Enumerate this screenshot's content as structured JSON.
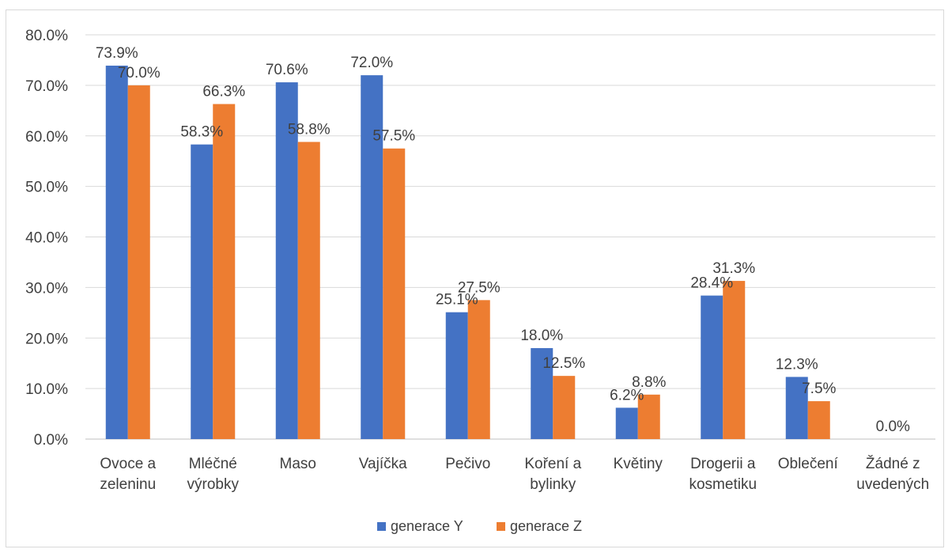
{
  "chart_data": {
    "type": "bar",
    "title": "",
    "xlabel": "",
    "ylabel": "",
    "ylim": [
      0,
      80
    ],
    "y_tick_step": 10,
    "y_tick_format": "percent_1dp",
    "grid": true,
    "legend_position": "bottom",
    "categories": [
      [
        "Ovoce a",
        "zeleninu"
      ],
      [
        "Mléčné",
        "výrobky"
      ],
      [
        "Maso"
      ],
      [
        "Vajíčka"
      ],
      [
        "Pečivo"
      ],
      [
        "Koření a",
        "bylinky"
      ],
      [
        "Květiny"
      ],
      [
        "Drogerii a",
        "kosmetiku"
      ],
      [
        "Oblečení"
      ],
      [
        "Žádné z",
        "uvedených"
      ]
    ],
    "series": [
      {
        "name": "generace Y",
        "color": "#4472c4",
        "values": [
          73.9,
          58.3,
          70.6,
          72.0,
          25.1,
          18.0,
          6.2,
          28.4,
          12.3,
          0.0
        ],
        "labels": [
          "73.9%",
          "58.3%",
          "70.6%",
          "72.0%",
          "25.1%",
          "18.0%",
          "6.2%",
          "28.4%",
          "12.3%",
          "0.0%"
        ]
      },
      {
        "name": "generace Z",
        "color": "#ed7d31",
        "values": [
          70.0,
          66.3,
          58.8,
          57.5,
          27.5,
          12.5,
          8.8,
          31.3,
          7.5,
          null
        ],
        "labels": [
          "70.0%",
          "66.3%",
          "58.8%",
          "57.5%",
          "27.5%",
          "12.5%",
          "8.8%",
          "31.3%",
          "7.5%",
          ""
        ]
      }
    ],
    "y_ticks": [
      "0.0%",
      "10.0%",
      "20.0%",
      "30.0%",
      "40.0%",
      "50.0%",
      "60.0%",
      "70.0%",
      "80.0%"
    ]
  }
}
